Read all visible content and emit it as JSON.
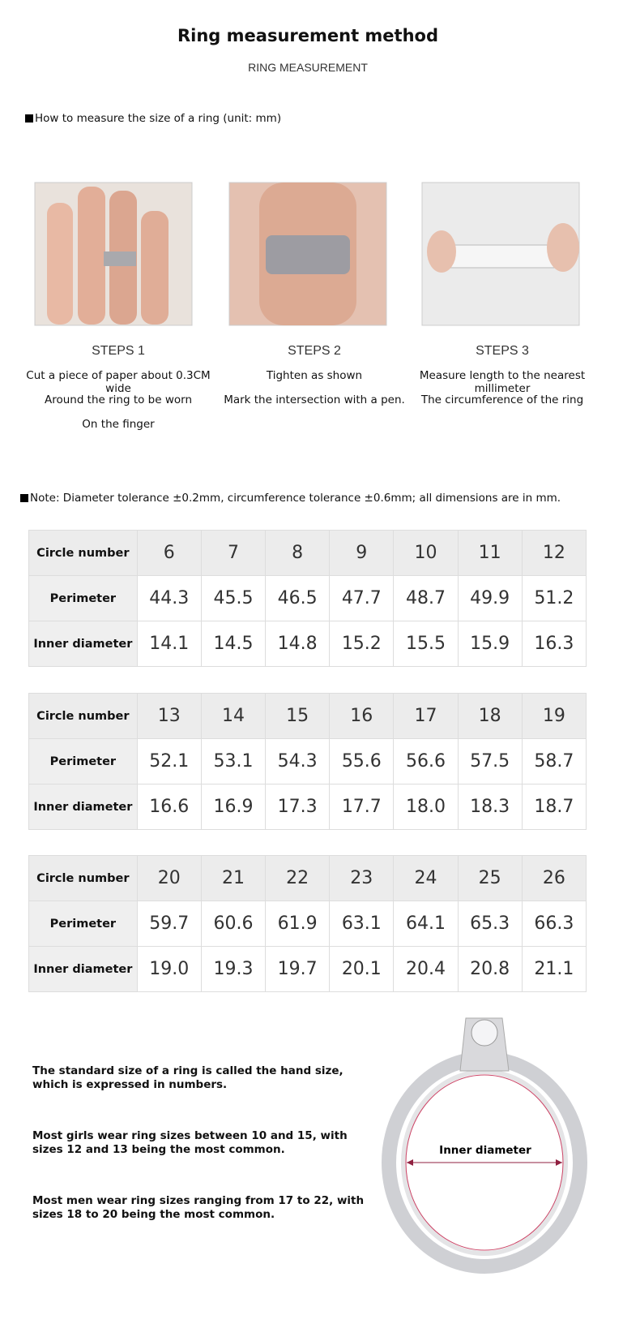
{
  "header": {
    "title": "Ring measurement method",
    "subtitle": "RING MEASUREMENT"
  },
  "section_heading": "How to measure the size of a ring (unit: mm)",
  "steps": [
    {
      "title": "STEPS 1",
      "lines": [
        "Cut a piece of paper about 0.3CM wide",
        "Around the ring to be worn",
        "On the finger"
      ]
    },
    {
      "title": "STEPS 2",
      "lines": [
        "Tighten as shown",
        "Mark the intersection with a pen."
      ]
    },
    {
      "title": "STEPS 3",
      "lines": [
        "Measure length to the nearest millimeter",
        "The circumference of the ring"
      ]
    }
  ],
  "note": "Note: Diameter tolerance ±0.2mm, circumference tolerance ±0.6mm; all dimensions are in mm.",
  "tables": [
    {
      "rows": [
        [
          "Circle number",
          "6",
          "7",
          "8",
          "9",
          "10",
          "11",
          "12"
        ],
        [
          "Perimeter",
          "44.3",
          "45.5",
          "46.5",
          "47.7",
          "48.7",
          "49.9",
          "51.2"
        ],
        [
          "Inner diameter",
          "14.1",
          "14.5",
          "14.8",
          "15.2",
          "15.5",
          "15.9",
          "16.3"
        ]
      ]
    },
    {
      "rows": [
        [
          "Circle number",
          "13",
          "14",
          "15",
          "16",
          "17",
          "18",
          "19"
        ],
        [
          "Perimeter",
          "52.1",
          "53.1",
          "54.3",
          "55.6",
          "56.6",
          "57.5",
          "58.7"
        ],
        [
          "Inner diameter",
          "16.6",
          "16.9",
          "17.3",
          "17.7",
          "18.0",
          "18.3",
          "18.7"
        ]
      ]
    },
    {
      "rows": [
        [
          "Circle number",
          "20",
          "21",
          "22",
          "23",
          "24",
          "25",
          "26"
        ],
        [
          "Perimeter",
          "59.7",
          "60.6",
          "61.9",
          "63.1",
          "64.1",
          "65.3",
          "66.3"
        ],
        [
          "Inner diameter",
          "19.0",
          "19.3",
          "19.7",
          "20.1",
          "20.4",
          "20.8",
          "21.1"
        ]
      ]
    }
  ],
  "facts": [
    "The standard size of a ring is called the hand size, which is expressed in numbers.",
    "Most girls wear ring sizes between 10 and 15, with sizes 12 and 13 being the most common.",
    "Most men wear ring sizes ranging from 17 to 22, with sizes 18 to 20 being the most common."
  ],
  "diagram_label": "Inner diameter"
}
